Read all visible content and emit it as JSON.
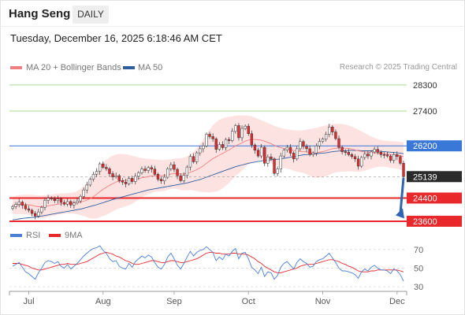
{
  "header": {
    "title": "Hang Seng",
    "timeframe": "DAILY",
    "timestamp": "Tuesday, December 16, 2025 6:18:46 AM CET"
  },
  "legend": {
    "ma20": "MA 20 + Bollinger Bands",
    "ma50": "MA 50",
    "credit": "Research © 2025 Trading Central",
    "rsi": "RSI",
    "rsi_ma": "9MA"
  },
  "colors": {
    "ma20": "#f08080",
    "ma50": "#2f5d9e",
    "bands_fill": "#fde2e2",
    "up_candle": "#ffffff",
    "down_candle": "#e8282b",
    "support": "#e8282b",
    "resistance_green": "#8fcf6a",
    "pivot": "#3a78d8",
    "last_price": "#2b2b2b",
    "arrow": "#2e64b0",
    "rsi": "#4a7fd8",
    "rsi_ma": "#e8282b"
  },
  "chart_data": [
    {
      "type": "candlestick",
      "title": "Hang Seng",
      "x_labels": [
        "Jul",
        "Aug",
        "Sep",
        "Oct",
        "Nov",
        "Dec"
      ],
      "y_axis_side": "right",
      "ylim": [
        23300,
        28650
      ],
      "levels": [
        {
          "value": 28300,
          "label": "28300",
          "kind": "resistance"
        },
        {
          "value": 27400,
          "label": "27400",
          "kind": "resistance"
        },
        {
          "value": 26200,
          "label": "26200",
          "kind": "pivot"
        },
        {
          "value": 25139,
          "label": "25139",
          "kind": "last-price"
        },
        {
          "value": 24400,
          "label": "24400",
          "kind": "support"
        },
        {
          "value": 23600,
          "label": "23600",
          "kind": "support"
        }
      ],
      "forecast_arrow": {
        "from": 25100,
        "to": 23750
      },
      "closes": [
        24100,
        24180,
        24260,
        24150,
        24030,
        23980,
        23870,
        23780,
        23920,
        24080,
        24320,
        24400,
        24370,
        24310,
        24370,
        24250,
        24190,
        24280,
        24160,
        24230,
        24300,
        24460,
        24680,
        24850,
        25050,
        25220,
        25320,
        25580,
        25460,
        25410,
        25240,
        25130,
        25170,
        25000,
        24950,
        24890,
        25080,
        24970,
        25150,
        25270,
        25400,
        25350,
        25450,
        25400,
        25220,
        25050,
        24990,
        25120,
        25410,
        25550,
        25390,
        25170,
        25000,
        25180,
        25470,
        25830,
        25650,
        25960,
        26100,
        26200,
        26600,
        26520,
        26440,
        26080,
        26250,
        26140,
        26420,
        26380,
        26700,
        26900,
        26480,
        26800,
        26880,
        26620,
        26230,
        26050,
        25850,
        26150,
        25600,
        25820,
        25750,
        25250,
        25400,
        25850,
        26050,
        26150,
        25950,
        25750,
        26100,
        26350,
        26180,
        26100,
        25900,
        25950,
        26200,
        26350,
        26430,
        26600,
        26850,
        26680,
        26450,
        26150,
        26000,
        25980,
        25900,
        25830,
        25750,
        25500,
        25800,
        25920,
        25850,
        25990,
        26080,
        25980,
        25900,
        25890,
        25850,
        25700,
        25900,
        25830,
        25600,
        25139
      ],
      "ma20": [
        24150,
        24160,
        24170,
        24175,
        24180,
        24170,
        24150,
        24120,
        24100,
        24100,
        24110,
        24130,
        24150,
        24170,
        24190,
        24200,
        24210,
        24220,
        24220,
        24230,
        24240,
        24260,
        24290,
        24330,
        24380,
        24450,
        24530,
        24620,
        24700,
        24770,
        24840,
        24900,
        24950,
        24980,
        25000,
        25010,
        25020,
        25030,
        25050,
        25070,
        25100,
        25120,
        25140,
        25160,
        25170,
        25170,
        25170,
        25180,
        25200,
        25230,
        25240,
        25240,
        25230,
        25230,
        25250,
        25290,
        25330,
        25380,
        25440,
        25510,
        25600,
        25680,
        25760,
        25820,
        25880,
        25940,
        26000,
        26060,
        26130,
        26200,
        26250,
        26300,
        26360,
        26400,
        26420,
        26420,
        26410,
        26400,
        26360,
        26320,
        26280,
        26220,
        26170,
        26140,
        26110,
        26090,
        26070,
        26040,
        26020,
        26010,
        26000,
        25990,
        25970,
        25960,
        25960,
        25980,
        26000,
        26030,
        26070,
        26100,
        26120,
        26130,
        26130,
        26120,
        26110,
        26090,
        26060,
        26030,
        26010,
        25990,
        25980,
        25970,
        25960,
        25950,
        25940,
        25930,
        25920,
        25900,
        25890,
        25880,
        25860,
        25830
      ],
      "bb_upper": [
        24450,
        24480,
        24500,
        24510,
        24520,
        24520,
        24510,
        24500,
        24490,
        24490,
        24500,
        24510,
        24520,
        24540,
        24550,
        24560,
        24560,
        24570,
        24580,
        24600,
        24640,
        24710,
        24800,
        24920,
        25060,
        25210,
        25360,
        25500,
        25620,
        25720,
        25800,
        25860,
        25900,
        25920,
        25920,
        25910,
        25890,
        25860,
        25830,
        25800,
        25780,
        25760,
        25750,
        25740,
        25730,
        25720,
        25710,
        25710,
        25720,
        25740,
        25760,
        25770,
        25780,
        25790,
        25830,
        25900,
        26000,
        26120,
        26260,
        26420,
        26600,
        26770,
        26910,
        27020,
        27100,
        27150,
        27180,
        27200,
        27220,
        27240,
        27250,
        27250,
        27250,
        27240,
        27220,
        27180,
        27130,
        27080,
        27040,
        26990,
        26940,
        26890,
        26850,
        26820,
        26790,
        26770,
        26750,
        26740,
        26730,
        26730,
        26740,
        26760,
        26780,
        26800,
        26820,
        26850,
        26880,
        26910,
        26940,
        26950,
        26960,
        26960,
        26950,
        26930,
        26900,
        26860,
        26810,
        26760,
        26700,
        26640,
        26580,
        26520,
        26470,
        26430,
        26400,
        26380,
        26370,
        26360,
        26360,
        26350,
        26340,
        26320
      ],
      "bb_lower": [
        23850,
        23840,
        23840,
        23840,
        23840,
        23820,
        23790,
        23740,
        23710,
        23710,
        23720,
        23750,
        23780,
        23800,
        23830,
        23840,
        23860,
        23870,
        23860,
        23860,
        23840,
        23810,
        23780,
        23740,
        23700,
        23690,
        23700,
        23740,
        23780,
        23820,
        23880,
        23940,
        24000,
        24040,
        24080,
        24110,
        24150,
        24200,
        24270,
        24340,
        24420,
        24480,
        24530,
        24580,
        24610,
        24620,
        24630,
        24650,
        24680,
        24720,
        24720,
        24710,
        24680,
        24670,
        24670,
        24680,
        24660,
        24640,
        24620,
        24600,
        24600,
        24590,
        24610,
        24620,
        24660,
        24730,
        24820,
        24920,
        25040,
        25160,
        25250,
        25350,
        25470,
        25560,
        25620,
        25660,
        25690,
        25720,
        25680,
        25650,
        25620,
        25550,
        25490,
        25460,
        25430,
        25410,
        25390,
        25340,
        25310,
        25290,
        25260,
        25220,
        25160,
        25120,
        25100,
        25110,
        25120,
        25150,
        25200,
        25250,
        25280,
        25300,
        25310,
        25310,
        25320,
        25320,
        25310,
        25300,
        25320,
        25340,
        25380,
        25420,
        25450,
        25470,
        25480,
        25480,
        25470,
        25440,
        25420,
        25410,
        25380,
        25340
      ],
      "ma50": [
        23650,
        23660,
        23680,
        23700,
        23710,
        23720,
        23730,
        23740,
        23760,
        23780,
        23800,
        23820,
        23840,
        23860,
        23880,
        23900,
        23920,
        23940,
        23960,
        23980,
        24000,
        24020,
        24050,
        24080,
        24110,
        24140,
        24170,
        24210,
        24240,
        24280,
        24310,
        24350,
        24380,
        24410,
        24440,
        24470,
        24500,
        24530,
        24560,
        24590,
        24620,
        24650,
        24680,
        24700,
        24720,
        24740,
        24760,
        24780,
        24800,
        24820,
        24840,
        24860,
        24880,
        24900,
        24920,
        24950,
        24980,
        25010,
        25040,
        25080,
        25120,
        25160,
        25200,
        25240,
        25280,
        25320,
        25360,
        25400,
        25440,
        25480,
        25510,
        25540,
        25570,
        25600,
        25620,
        25640,
        25660,
        25680,
        25700,
        25710,
        25720,
        25730,
        25740,
        25750,
        25770,
        25790,
        25810,
        25830,
        25850,
        25870,
        25890,
        25900,
        25910,
        25920,
        25930,
        25940,
        25950,
        25960,
        25980,
        26000,
        26010,
        26020,
        26030,
        26030,
        26040,
        26040,
        26040,
        26040,
        26030,
        26030,
        26030,
        26030,
        26030,
        26020,
        26010,
        26000,
        25990,
        25980,
        25970,
        25960,
        25950,
        25930
      ]
    },
    {
      "type": "line",
      "title": "RSI",
      "ylim": [
        25,
        80
      ],
      "ticks": [
        70,
        50,
        30
      ],
      "series": [
        {
          "name": "RSI",
          "values": [
            52,
            54,
            56,
            51,
            46,
            44,
            41,
            38,
            45,
            50,
            56,
            58,
            57,
            55,
            57,
            52,
            50,
            54,
            49,
            52,
            55,
            59,
            63,
            66,
            69,
            71,
            72,
            74,
            69,
            66,
            60,
            57,
            58,
            52,
            50,
            49,
            55,
            51,
            57,
            60,
            63,
            61,
            64,
            62,
            56,
            51,
            49,
            54,
            62,
            66,
            60,
            53,
            49,
            55,
            62,
            68,
            63,
            67,
            69,
            70,
            73,
            70,
            67,
            58,
            62,
            59,
            65,
            63,
            68,
            71,
            60,
            66,
            67,
            60,
            51,
            48,
            44,
            51,
            41,
            46,
            45,
            38,
            42,
            51,
            55,
            57,
            53,
            49,
            56,
            60,
            57,
            55,
            51,
            52,
            57,
            59,
            60,
            63,
            66,
            61,
            56,
            50,
            47,
            47,
            46,
            45,
            43,
            39,
            46,
            49,
            47,
            51,
            53,
            50,
            48,
            48,
            47,
            44,
            49,
            47,
            43,
            36
          ]
        },
        {
          "name": "9MA",
          "values": [
            55,
            55,
            55,
            54,
            53,
            52,
            50,
            49,
            48,
            48,
            49,
            50,
            51,
            52,
            53,
            54,
            54,
            55,
            54,
            54,
            54,
            55,
            56,
            57,
            59,
            61,
            63,
            65,
            66,
            67,
            66,
            65,
            63,
            62,
            60,
            58,
            57,
            55,
            54,
            54,
            55,
            56,
            57,
            58,
            58,
            57,
            56,
            56,
            57,
            58,
            58,
            57,
            56,
            56,
            57,
            58,
            59,
            60,
            62,
            64,
            66,
            67,
            67,
            66,
            66,
            65,
            65,
            65,
            66,
            66,
            65,
            65,
            65,
            64,
            62,
            60,
            57,
            55,
            52,
            50,
            48,
            46,
            45,
            45,
            46,
            47,
            48,
            49,
            50,
            52,
            53,
            54,
            54,
            54,
            55,
            56,
            57,
            58,
            59,
            59,
            58,
            57,
            55,
            54,
            52,
            51,
            49,
            47,
            46,
            46,
            46,
            47,
            47,
            48,
            48,
            48,
            48,
            48,
            48,
            48,
            47,
            46
          ]
        }
      ]
    }
  ]
}
